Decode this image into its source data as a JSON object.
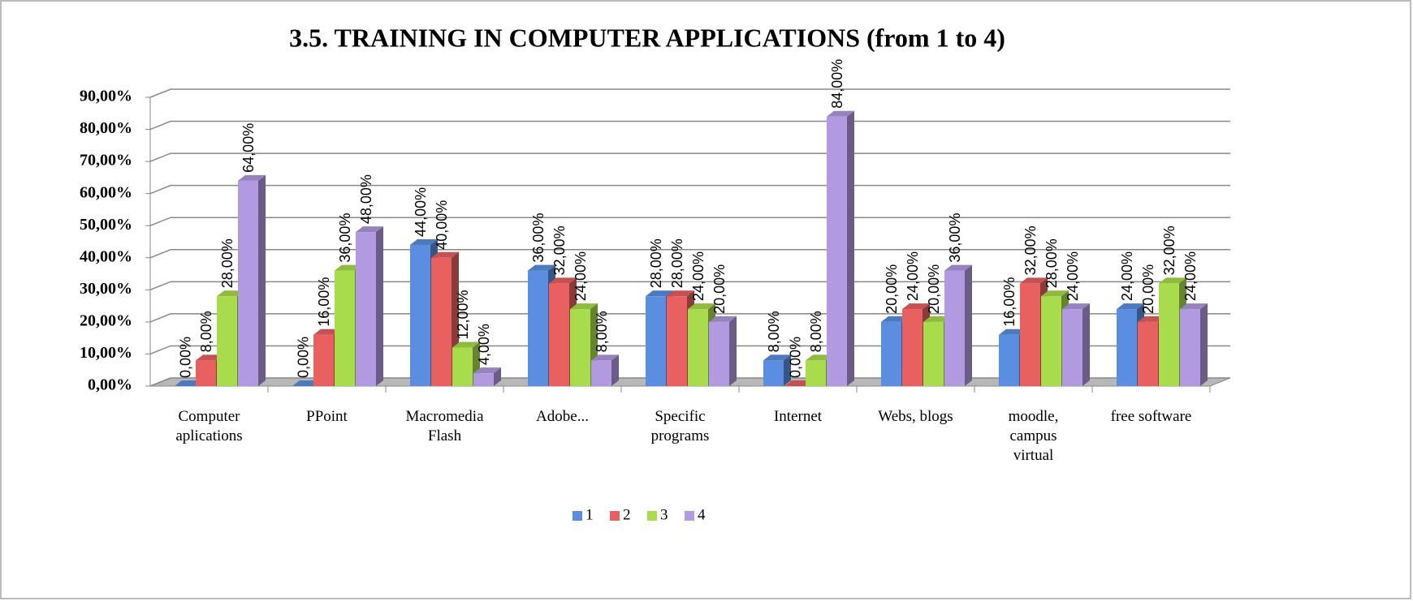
{
  "chart_data": {
    "type": "bar3d",
    "title": "3.5. TRAINING IN COMPUTER APPLICATIONS (from 1 to 4)",
    "categories": [
      "Computer aplications",
      "PPoint",
      "Macromedia Flash",
      "Adobe...",
      "Specific programs",
      "Internet",
      "Webs, blogs",
      "moodle, campus virtual",
      "free software"
    ],
    "series": [
      {
        "name": "1",
        "color": "#5b8ee0",
        "values": [
          0,
          0,
          44,
          36,
          28,
          8,
          20,
          16,
          24
        ],
        "value_labels": [
          "0,00%",
          "0,00%",
          "44,00%",
          "36,00%",
          "28,00%",
          "8,00%",
          "20,00%",
          "16,00%",
          "24,00%"
        ]
      },
      {
        "name": "2",
        "color": "#e86060",
        "values": [
          8,
          16,
          40,
          32,
          28,
          0,
          24,
          32,
          20
        ],
        "value_labels": [
          "8,00%",
          "16,00%",
          "40,00%",
          "32,00%",
          "28,00%",
          "0,00%",
          "24,00%",
          "32,00%",
          "20,00%"
        ]
      },
      {
        "name": "3",
        "color": "#a8dc4c",
        "values": [
          28,
          36,
          12,
          24,
          24,
          8,
          20,
          28,
          32
        ],
        "value_labels": [
          "28,00%",
          "36,00%",
          "12,00%",
          "24,00%",
          "24,00%",
          "8,00%",
          "20,00%",
          "28,00%",
          "32,00%"
        ]
      },
      {
        "name": "4",
        "color": "#b19ae0",
        "values": [
          64,
          48,
          4,
          8,
          20,
          84,
          36,
          24,
          24
        ],
        "value_labels": [
          "64,00%",
          "48,00%",
          "4,00%",
          "8,00%",
          "20,00%",
          "84,00%",
          "36,00%",
          "24,00%",
          "24,00%"
        ]
      }
    ],
    "ylim": [
      0,
      90
    ],
    "yticks": [
      {
        "value": 0,
        "label": "0,00%"
      },
      {
        "value": 10,
        "label": "10,00%"
      },
      {
        "value": 20,
        "label": "20,00%"
      },
      {
        "value": 30,
        "label": "30,00%"
      },
      {
        "value": 40,
        "label": "40,00%"
      },
      {
        "value": 50,
        "label": "50,00%"
      },
      {
        "value": 60,
        "label": "60,00%"
      },
      {
        "value": 70,
        "label": "70,00%"
      },
      {
        "value": 80,
        "label": "80,00%"
      },
      {
        "value": 90,
        "label": "90,00%"
      }
    ],
    "grid": true,
    "legend": "bottom"
  }
}
